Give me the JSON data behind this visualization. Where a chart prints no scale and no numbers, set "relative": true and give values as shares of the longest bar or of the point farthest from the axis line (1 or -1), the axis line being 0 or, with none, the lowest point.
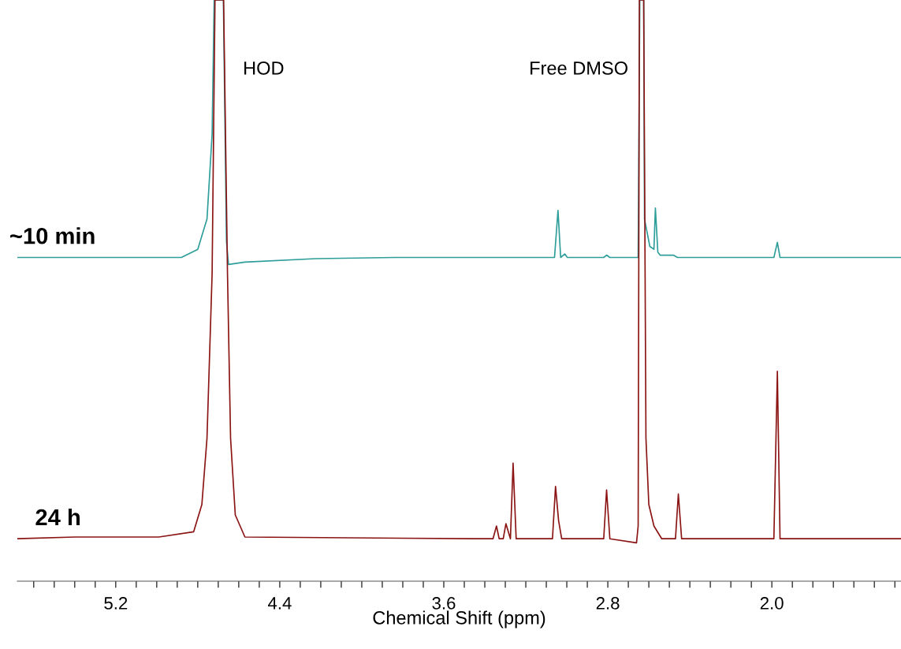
{
  "chart_data": {
    "type": "line",
    "relative": true,
    "xlabel": "Chemical Shift (ppm)",
    "xlim": [
      5.68,
      1.37
    ],
    "xticks": [
      {
        "value": 5.6,
        "label": null
      },
      {
        "value": 5.5,
        "label": null
      },
      {
        "value": 5.4,
        "label": null
      },
      {
        "value": 5.3,
        "label": null
      },
      {
        "value": 5.2,
        "label": "5.2"
      },
      {
        "value": 5.1,
        "label": null
      },
      {
        "value": 5.0,
        "label": null
      },
      {
        "value": 4.9,
        "label": null
      },
      {
        "value": 4.8,
        "label": null
      },
      {
        "value": 4.7,
        "label": null
      },
      {
        "value": 4.6,
        "label": null
      },
      {
        "value": 4.5,
        "label": null
      },
      {
        "value": 4.4,
        "label": "4.4"
      },
      {
        "value": 4.3,
        "label": null
      },
      {
        "value": 4.2,
        "label": null
      },
      {
        "value": 4.1,
        "label": null
      },
      {
        "value": 4.0,
        "label": null
      },
      {
        "value": 3.9,
        "label": null
      },
      {
        "value": 3.8,
        "label": null
      },
      {
        "value": 3.7,
        "label": null
      },
      {
        "value": 3.6,
        "label": "3.6"
      },
      {
        "value": 3.5,
        "label": null
      },
      {
        "value": 3.4,
        "label": null
      },
      {
        "value": 3.3,
        "label": null
      },
      {
        "value": 3.2,
        "label": null
      },
      {
        "value": 3.1,
        "label": null
      },
      {
        "value": 3.0,
        "label": null
      },
      {
        "value": 2.9,
        "label": null
      },
      {
        "value": 2.8,
        "label": "2.8"
      },
      {
        "value": 2.7,
        "label": null
      },
      {
        "value": 2.6,
        "label": null
      },
      {
        "value": 2.5,
        "label": null
      },
      {
        "value": 2.4,
        "label": null
      },
      {
        "value": 2.3,
        "label": null
      },
      {
        "value": 2.2,
        "label": null
      },
      {
        "value": 2.1,
        "label": null
      },
      {
        "value": 2.0,
        "label": "2.0"
      },
      {
        "value": 1.9,
        "label": null
      },
      {
        "value": 1.8,
        "label": null
      },
      {
        "value": 1.7,
        "label": null
      },
      {
        "value": 1.6,
        "label": null
      },
      {
        "value": 1.5,
        "label": null
      },
      {
        "value": 1.4,
        "label": null
      }
    ],
    "tick_labels": "x",
    "grid": false,
    "legend": false,
    "marker": "none",
    "line_style": "solid",
    "annotations": [
      "HOD",
      "Free DMSO"
    ],
    "series": [
      {
        "name": "~10 min",
        "color": "#2e9e9a",
        "x": [
          5.68,
          5.2,
          4.88,
          4.8,
          4.755,
          4.73,
          4.72,
          4.675,
          4.66,
          4.65,
          4.57,
          4.225,
          3.84,
          3.06,
          3.043,
          3.03,
          3.01,
          2.997,
          2.82,
          2.806,
          2.79,
          2.652,
          2.644,
          2.625,
          2.621,
          2.595,
          2.575,
          2.568,
          2.556,
          2.545,
          2.48,
          2.46,
          1.99,
          1.973,
          1.96,
          1.37
        ],
        "values": [
          0.557,
          0.557,
          0.557,
          0.571,
          0.623,
          0.769,
          1.0,
          1.0,
          0.585,
          0.545,
          0.549,
          0.555,
          0.557,
          0.557,
          0.638,
          0.557,
          0.563,
          0.557,
          0.557,
          0.561,
          0.557,
          0.557,
          1.0,
          1.0,
          0.623,
          0.576,
          0.571,
          0.642,
          0.566,
          0.561,
          0.561,
          0.557,
          0.557,
          0.583,
          0.557,
          0.557
        ]
      },
      {
        "name": "24 h",
        "color": "#8b1414",
        "x": [
          5.68,
          5.4,
          4.99,
          4.82,
          4.78,
          4.755,
          4.73,
          4.716,
          4.674,
          4.655,
          4.64,
          4.617,
          4.57,
          3.46,
          3.36,
          3.343,
          3.33,
          3.31,
          3.297,
          3.275,
          3.262,
          3.247,
          3.07,
          3.055,
          3.04,
          3.025,
          2.82,
          2.806,
          2.79,
          2.66,
          2.652,
          2.646,
          2.625,
          2.614,
          2.6,
          2.575,
          2.537,
          2.47,
          2.456,
          2.44,
          1.99,
          1.973,
          1.96,
          1.37
        ],
        "values": [
          0.073,
          0.076,
          0.076,
          0.085,
          0.132,
          0.246,
          0.529,
          1.0,
          1.0,
          0.529,
          0.246,
          0.114,
          0.076,
          0.073,
          0.073,
          0.095,
          0.073,
          0.073,
          0.099,
          0.073,
          0.203,
          0.073,
          0.073,
          0.163,
          0.104,
          0.073,
          0.073,
          0.157,
          0.073,
          0.066,
          0.095,
          1.0,
          1.0,
          0.246,
          0.132,
          0.095,
          0.073,
          0.073,
          0.15,
          0.073,
          0.073,
          0.361,
          0.073,
          0.073
        ]
      }
    ]
  }
}
